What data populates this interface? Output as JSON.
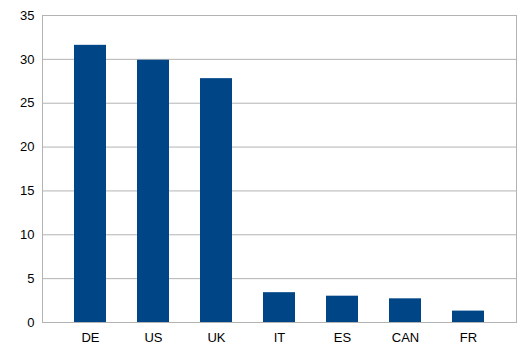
{
  "chart_data": {
    "type": "bar",
    "categories": [
      "DE",
      "US",
      "UK",
      "IT",
      "ES",
      "CAN",
      "FR"
    ],
    "values": [
      31.6,
      29.9,
      27.8,
      3.4,
      3.0,
      2.7,
      1.3
    ],
    "color": "#004586",
    "ylim": [
      0,
      35
    ],
    "yticks": [
      0,
      5,
      10,
      15,
      20,
      25,
      30,
      35
    ],
    "grid": true
  }
}
